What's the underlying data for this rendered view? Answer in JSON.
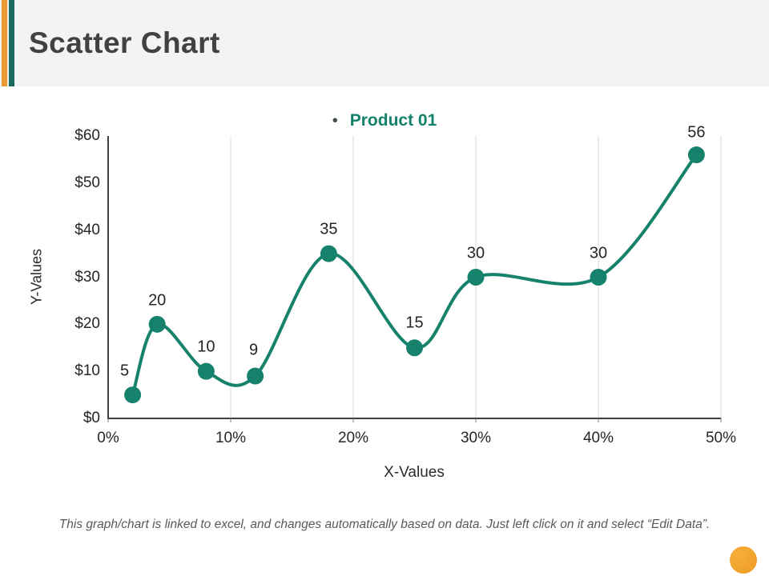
{
  "header": {
    "title": "Scatter Chart"
  },
  "legend": {
    "bullet": "•",
    "label": "Product 01"
  },
  "chart_data": {
    "type": "scatter",
    "line_smooth": true,
    "title": "",
    "xlabel": "X-Values",
    "ylabel": "Y-Values",
    "xlim": [
      0,
      50
    ],
    "ylim": [
      0,
      60
    ],
    "grid": "vertical-only",
    "legend_position": "top-center",
    "x_ticks": [
      "0%",
      "10%",
      "20%",
      "30%",
      "40%",
      "50%"
    ],
    "x_tick_values": [
      0,
      10,
      20,
      30,
      40,
      50
    ],
    "y_ticks": [
      "$0",
      "$10",
      "$20",
      "$30",
      "$40",
      "$50",
      "$60"
    ],
    "y_tick_values": [
      0,
      10,
      20,
      30,
      40,
      50,
      60
    ],
    "series": [
      {
        "name": "Product 01",
        "color": "#17826B",
        "x": [
          2,
          4,
          8,
          12,
          18,
          25,
          30,
          40,
          48
        ],
        "y": [
          5,
          20,
          10,
          9,
          35,
          15,
          30,
          30,
          56
        ],
        "point_labels": [
          "5",
          "20",
          "10",
          "9",
          "35",
          "15",
          "30",
          "30",
          "56"
        ],
        "label_offsets": [
          [
            -10,
            -30
          ],
          [
            0,
            -29
          ],
          [
            0,
            -30
          ],
          [
            -2,
            -32
          ],
          [
            0,
            -30
          ],
          [
            0,
            -31
          ],
          [
            0,
            -30
          ],
          [
            0,
            -30
          ],
          [
            0,
            -28
          ]
        ]
      }
    ]
  },
  "footer": {
    "note": "This graph/chart is linked to excel, and changes automatically based on data. Just left click on it and select “Edit Data”."
  },
  "theme": {
    "stripe_orange": "#E8992F",
    "stripe_teal": "#1A6B5F",
    "series_teal": "#17826B",
    "grid_gray": "#D9D9D9",
    "axis_dark": "#3F3F3F",
    "corner_circle_orange": "#F0A02A"
  }
}
